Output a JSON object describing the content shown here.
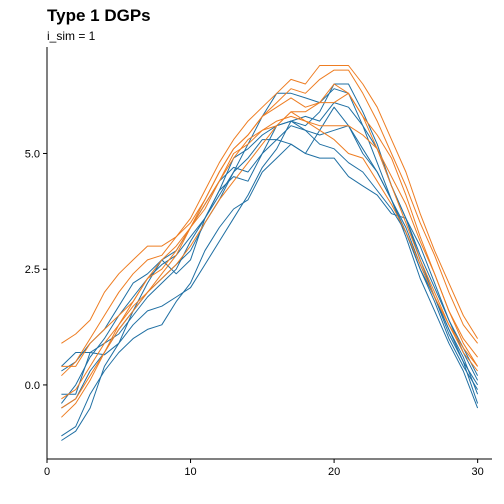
{
  "chart_data": {
    "type": "line",
    "title": "Type 1 DGPs",
    "subtitle": "i_sim = 1",
    "xlabel": "",
    "ylabel": "",
    "xlim": [
      0,
      31
    ],
    "ylim": [
      -1.6,
      7.3
    ],
    "x_ticks": [
      0,
      10,
      20,
      30
    ],
    "x_tick_labels": [
      "0",
      "10",
      "20",
      "30"
    ],
    "y_ticks": [
      0,
      2.5,
      5
    ],
    "y_tick_labels": [
      "0.0",
      "2.5",
      "5.0"
    ],
    "grid": false,
    "legend": "none",
    "x": [
      1,
      2,
      3,
      4,
      5,
      6,
      7,
      8,
      9,
      10,
      11,
      12,
      13,
      14,
      15,
      16,
      17,
      18,
      19,
      20,
      21,
      22,
      23,
      24,
      25,
      26,
      27,
      28,
      29,
      30
    ],
    "series_colors": {
      "blue": "#1f6fa3",
      "orange": "#ee7d22"
    },
    "series": [
      {
        "color": "blue",
        "values": [
          -0.2,
          -0.2,
          0.7,
          0.65,
          0.9,
          1.6,
          2.2,
          2.7,
          2.4,
          2.7,
          3.6,
          4.2,
          4.9,
          5.1,
          5.4,
          5.6,
          5.7,
          5.5,
          5.2,
          5.1,
          4.8,
          4.6,
          4.2,
          3.8,
          3.3,
          2.5,
          1.9,
          1.2,
          0.6,
          -0.2
        ]
      },
      {
        "color": "blue",
        "values": [
          0.3,
          0.5,
          0.9,
          1.2,
          1.7,
          2.2,
          2.4,
          2.7,
          2.9,
          3.4,
          3.9,
          4.4,
          4.7,
          4.6,
          5.0,
          5.3,
          5.2,
          5.0,
          4.9,
          4.9,
          4.5,
          4.3,
          4.1,
          3.7,
          3.6,
          3.0,
          2.2,
          1.4,
          0.8,
          0.2
        ]
      },
      {
        "color": "blue",
        "values": [
          -0.5,
          -0.3,
          0.3,
          0.7,
          1.2,
          1.6,
          2.0,
          2.3,
          2.6,
          2.9,
          3.5,
          4.0,
          4.6,
          5.2,
          5.8,
          6.3,
          6.3,
          6.2,
          6.1,
          6.4,
          6.3,
          5.6,
          4.8,
          4.0,
          3.3,
          2.5,
          1.8,
          1.0,
          0.4,
          -0.1
        ]
      },
      {
        "color": "blue",
        "values": [
          -1.1,
          -0.9,
          -0.2,
          0.3,
          0.7,
          1.0,
          1.2,
          1.3,
          1.8,
          2.2,
          2.9,
          3.4,
          3.8,
          4.0,
          4.6,
          4.9,
          5.2,
          5.0,
          5.5,
          6.0,
          5.6,
          5.1,
          4.6,
          4.0,
          3.2,
          2.3,
          1.6,
          0.9,
          0.3,
          -0.5
        ]
      },
      {
        "color": "blue",
        "values": [
          0.4,
          0.7,
          0.7,
          0.9,
          1.1,
          1.5,
          1.9,
          2.2,
          2.5,
          3.1,
          3.6,
          4.1,
          4.6,
          4.9,
          5.3,
          5.3,
          5.6,
          5.5,
          5.4,
          5.5,
          5.6,
          5.0,
          4.6,
          4.0,
          3.4,
          2.6,
          1.9,
          1.2,
          0.5,
          0.0
        ]
      },
      {
        "color": "blue",
        "values": [
          -1.2,
          -1.0,
          -0.5,
          0.4,
          0.9,
          1.3,
          1.6,
          1.7,
          1.9,
          2.1,
          2.6,
          3.1,
          3.6,
          4.1,
          4.7,
          5.1,
          5.7,
          5.8,
          5.7,
          6.1,
          6.0,
          5.6,
          5.1,
          4.3,
          3.6,
          2.7,
          1.9,
          1.1,
          0.5,
          -0.4
        ]
      },
      {
        "color": "blue",
        "values": [
          -0.4,
          0.0,
          0.6,
          1.0,
          1.5,
          1.9,
          2.3,
          2.6,
          2.8,
          3.2,
          3.6,
          4.2,
          4.5,
          4.4,
          5.0,
          5.6,
          5.7,
          5.6,
          5.9,
          6.5,
          6.5,
          5.9,
          5.2,
          4.3,
          3.6,
          2.8,
          2.1,
          1.4,
          0.7,
          0.1
        ]
      },
      {
        "color": "orange",
        "values": [
          0.9,
          1.1,
          1.4,
          2.0,
          2.4,
          2.7,
          3.0,
          3.0,
          3.2,
          3.5,
          4.0,
          4.6,
          5.1,
          5.4,
          5.8,
          6.1,
          6.4,
          6.3,
          6.6,
          6.8,
          6.8,
          6.3,
          5.7,
          5.0,
          4.3,
          3.5,
          2.8,
          2.0,
          1.3,
          0.9
        ]
      },
      {
        "color": "orange",
        "values": [
          0.2,
          0.5,
          1.0,
          1.5,
          2.0,
          2.4,
          2.7,
          2.8,
          3.2,
          3.6,
          4.2,
          4.8,
          5.3,
          5.7,
          6.0,
          6.3,
          6.6,
          6.5,
          6.9,
          6.9,
          6.9,
          6.5,
          6.0,
          5.3,
          4.6,
          3.7,
          2.9,
          2.2,
          1.5,
          1.0
        ]
      },
      {
        "color": "orange",
        "values": [
          -0.5,
          -0.3,
          0.2,
          0.7,
          1.2,
          1.6,
          2.0,
          2.3,
          2.6,
          3.0,
          3.5,
          4.0,
          4.4,
          4.8,
          5.2,
          5.6,
          5.9,
          5.9,
          6.1,
          6.1,
          6.3,
          5.8,
          5.4,
          4.9,
          4.1,
          3.2,
          2.4,
          1.6,
          0.9,
          0.4
        ]
      },
      {
        "color": "orange",
        "values": [
          -0.7,
          -0.4,
          0.1,
          0.7,
          1.3,
          1.8,
          2.3,
          2.7,
          3.0,
          3.4,
          3.9,
          4.4,
          4.9,
          5.3,
          5.5,
          5.6,
          5.9,
          5.7,
          5.5,
          5.3,
          5.0,
          4.9,
          4.4,
          3.9,
          3.3,
          2.6,
          1.9,
          1.3,
          0.7,
          0.3
        ]
      },
      {
        "color": "orange",
        "values": [
          0.4,
          0.4,
          0.9,
          1.2,
          1.5,
          1.8,
          2.3,
          2.5,
          2.9,
          3.4,
          3.8,
          4.4,
          5.0,
          5.2,
          5.5,
          5.7,
          5.8,
          5.7,
          5.6,
          5.6,
          5.6,
          5.4,
          5.1,
          4.5,
          3.9,
          3.1,
          2.4,
          1.6,
          1.0,
          0.6
        ]
      },
      {
        "color": "orange",
        "values": [
          -0.3,
          -0.1,
          0.4,
          0.9,
          1.3,
          1.7,
          2.0,
          2.4,
          2.8,
          3.4,
          4.0,
          4.6,
          5.1,
          5.4,
          5.8,
          6.0,
          6.2,
          6.0,
          6.1,
          6.5,
          6.3,
          5.8,
          5.1,
          4.3,
          3.5,
          2.7,
          2.0,
          1.3,
          0.8,
          0.4
        ]
      }
    ]
  }
}
